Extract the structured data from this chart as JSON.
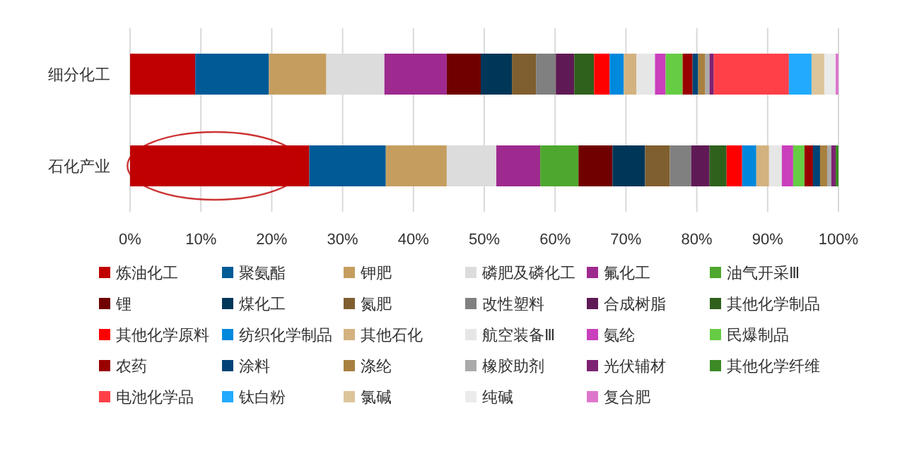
{
  "chart_data": {
    "type": "bar",
    "orientation": "horizontal",
    "stacked": true,
    "categories": [
      "细分化工",
      "石化产业"
    ],
    "series": [
      {
        "name": "炼油化工",
        "color": "#c00000",
        "values": [
          9.2,
          25.3
        ]
      },
      {
        "name": "聚氨酯",
        "color": "#005a96",
        "values": [
          10.4,
          10.8
        ]
      },
      {
        "name": "钾肥",
        "color": "#c59e5f",
        "values": [
          8.1,
          8.6
        ]
      },
      {
        "name": "磷肥及磷化工",
        "color": "#dcdcdc",
        "values": [
          8.2,
          7.0
        ]
      },
      {
        "name": "氟化工",
        "color": "#9e2a8f",
        "values": [
          8.8,
          6.2
        ]
      },
      {
        "name": "油气开采Ⅲ",
        "color": "#4ea72e",
        "values": [
          0,
          5.4
        ]
      },
      {
        "name": "锂",
        "color": "#700000",
        "values": [
          4.8,
          4.8
        ]
      },
      {
        "name": "煤化工",
        "color": "#003658",
        "values": [
          4.4,
          4.6
        ]
      },
      {
        "name": "氮肥",
        "color": "#7f5f2f",
        "values": [
          3.4,
          3.5
        ]
      },
      {
        "name": "改性塑料",
        "color": "#808080",
        "values": [
          2.8,
          3.0
        ]
      },
      {
        "name": "合成树脂",
        "color": "#5f1a55",
        "values": [
          2.6,
          2.6
        ]
      },
      {
        "name": "其他化学制品",
        "color": "#2f611c",
        "values": [
          2.8,
          2.4
        ]
      },
      {
        "name": "其他化学原料",
        "color": "#ff0000",
        "values": [
          2.2,
          2.2
        ]
      },
      {
        "name": "纺织化学制品",
        "color": "#0088dd",
        "values": [
          2.0,
          2.0
        ]
      },
      {
        "name": "其他石化",
        "color": "#d3b27f",
        "values": [
          1.8,
          1.8
        ]
      },
      {
        "name": "航空装备Ⅲ",
        "color": "#e6e6e6",
        "values": [
          2.6,
          1.8
        ]
      },
      {
        "name": "氨纶",
        "color": "#c93fbc",
        "values": [
          1.5,
          1.6
        ]
      },
      {
        "name": "民爆制品",
        "color": "#66cc44",
        "values": [
          2.4,
          1.6
        ]
      },
      {
        "name": "农药",
        "color": "#9a0000",
        "values": [
          1.4,
          1.2
        ]
      },
      {
        "name": "涂料",
        "color": "#004477",
        "values": [
          0.8,
          1.0
        ]
      },
      {
        "name": "涤纶",
        "color": "#a8803f",
        "values": [
          1.0,
          1.0
        ]
      },
      {
        "name": "橡胶助剂",
        "color": "#aaaaaa",
        "values": [
          0.6,
          0.6
        ]
      },
      {
        "name": "光伏辅材",
        "color": "#7d2272",
        "values": [
          0.6,
          0.6
        ]
      },
      {
        "name": "其他化学纤维",
        "color": "#3c8a26",
        "values": [
          0,
          0.4
        ]
      },
      {
        "name": "电池化学品",
        "color": "#ff4049",
        "values": [
          10.6,
          0
        ]
      },
      {
        "name": "钛白粉",
        "color": "#22aaff",
        "values": [
          3.2,
          0
        ]
      },
      {
        "name": "氯碱",
        "color": "#dcc59a",
        "values": [
          1.8,
          0
        ]
      },
      {
        "name": "纯碱",
        "color": "#ebebeb",
        "values": [
          1.6,
          0
        ]
      },
      {
        "name": "复合肥",
        "color": "#dd77cc",
        "values": [
          0.4,
          0
        ]
      }
    ],
    "xlim": [
      0,
      100
    ],
    "xticks": [
      {
        "value": 0,
        "label": "0%"
      },
      {
        "value": 10,
        "label": "10%"
      },
      {
        "value": 20,
        "label": "20%"
      },
      {
        "value": 30,
        "label": "30%"
      },
      {
        "value": 40,
        "label": "40%"
      },
      {
        "value": 50,
        "label": "50%"
      },
      {
        "value": 60,
        "label": "60%"
      },
      {
        "value": 70,
        "label": "70%"
      },
      {
        "value": 80,
        "label": "80%"
      },
      {
        "value": 90,
        "label": "90%"
      },
      {
        "value": 100,
        "label": "100%"
      }
    ],
    "grid": "x",
    "legend": "bottom"
  }
}
